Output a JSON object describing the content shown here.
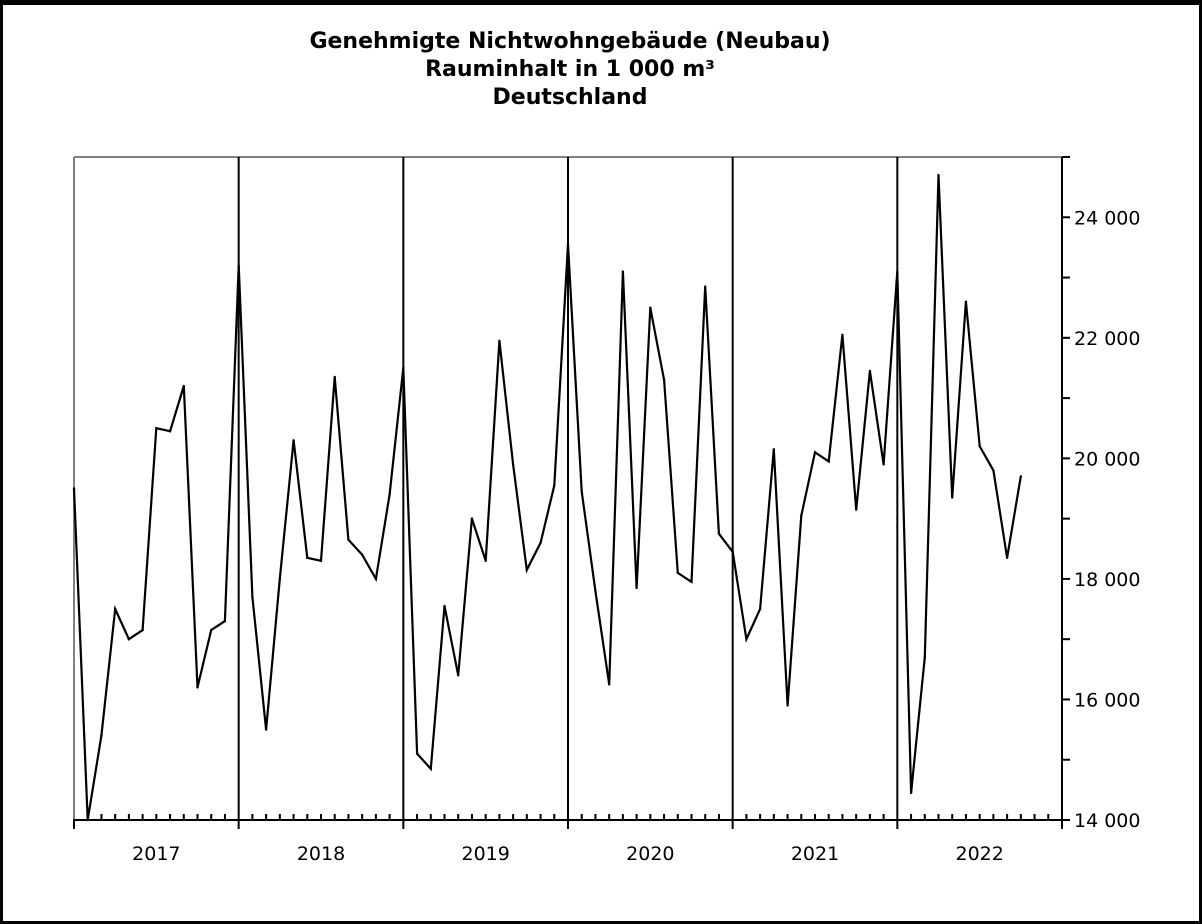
{
  "chart_data": {
    "type": "line",
    "title_lines": [
      "Genehmigte Nichtwohngebäude (Neubau)",
      "Rauminhalt in 1 000 m³",
      "Deutschland"
    ],
    "xlabel": "",
    "ylabel": "",
    "ylim": [
      14000,
      25000
    ],
    "yticks": [
      14000,
      16000,
      18000,
      20000,
      22000,
      24000
    ],
    "ytick_labels": [
      "14 000",
      "16 000",
      "18 000",
      "20 000",
      "22 000",
      "24 000"
    ],
    "y_axis_position": "right",
    "years": [
      "2017",
      "2018",
      "2019",
      "2020",
      "2021",
      "2022"
    ],
    "x_frequency": "monthly",
    "series": [
      {
        "values": [
          19500,
          14000,
          15400,
          17500,
          17000,
          17150,
          20500,
          20450,
          21200,
          16200,
          17150,
          17300,
          23200,
          17700,
          15500,
          18000,
          20300,
          18350,
          18300,
          21350,
          18650,
          18400,
          18000,
          19400,
          21500,
          15100,
          14850,
          17550,
          16400,
          19000,
          18300,
          21950,
          19900,
          18150,
          18600,
          19550,
          23550,
          19450,
          17800,
          16250,
          23100,
          17850,
          22500,
          21300,
          18100,
          17950,
          22850,
          18750,
          18450,
          17000,
          17500,
          20150,
          15900,
          19050,
          20100,
          19950,
          22050,
          19150,
          21450,
          19900,
          23100,
          14450,
          16700,
          24700,
          19350,
          22600,
          20200,
          19800,
          18350,
          19700
        ]
      }
    ],
    "grid": false,
    "legend": "none",
    "colors": {
      "line": "#000000",
      "frame": "#808080",
      "axis": "#000000"
    }
  }
}
